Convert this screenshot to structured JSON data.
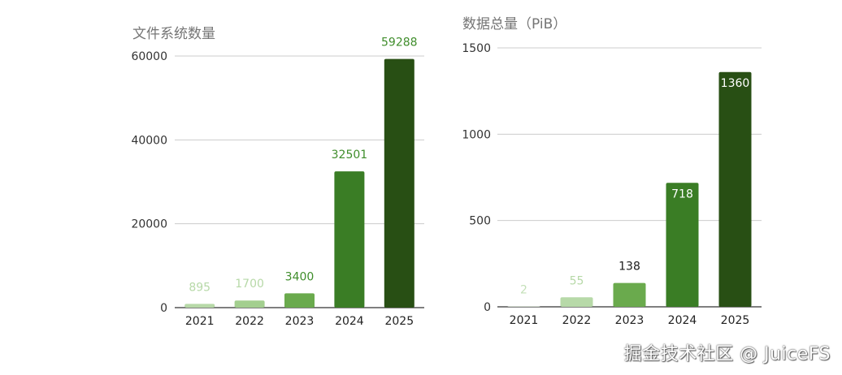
{
  "chart_data": [
    {
      "type": "bar",
      "title": "文件系统数量",
      "categories": [
        "2021",
        "2022",
        "2023",
        "2024",
        "2025"
      ],
      "values": [
        895,
        1700,
        3400,
        32501,
        59288
      ],
      "data_labels": [
        "895",
        "1700",
        "3400",
        "32501",
        "59288"
      ],
      "ylim": [
        0,
        60000
      ],
      "yticks": [
        0,
        20000,
        40000,
        60000
      ],
      "ytick_labels": [
        "0",
        "20000",
        "40000",
        "60000"
      ],
      "grid": true,
      "bar_colors": [
        "#b7d9a8",
        "#a3cf8f",
        "#6aaa4d",
        "#3a7d25",
        "#284f14"
      ],
      "label_colors": [
        "#b7d9a8",
        "#b7d9a8",
        "#3f8d2b",
        "#3f8d2b",
        "#3f8d2b"
      ]
    },
    {
      "type": "bar",
      "title": "数据总量（PiB）",
      "categories": [
        "2021",
        "2022",
        "2023",
        "2024",
        "2025"
      ],
      "values": [
        2,
        55,
        138,
        718,
        1360
      ],
      "data_labels": [
        "2",
        "55",
        "138",
        "718",
        "1360"
      ],
      "ylim": [
        0,
        1500
      ],
      "yticks": [
        0,
        500,
        1000,
        1500
      ],
      "ytick_labels": [
        "0",
        "500",
        "1000",
        "1500"
      ],
      "grid": true,
      "bar_colors": [
        "#d9ead3",
        "#b7d9a8",
        "#6aaa4d",
        "#3a7d25",
        "#284f14"
      ],
      "label_colors": [
        "#c4e0b8",
        "#b7d9a8",
        "#1a1a1a",
        "#ffffff",
        "#ffffff"
      ]
    }
  ],
  "watermark": "掘金技术社区 @ JuiceFS"
}
